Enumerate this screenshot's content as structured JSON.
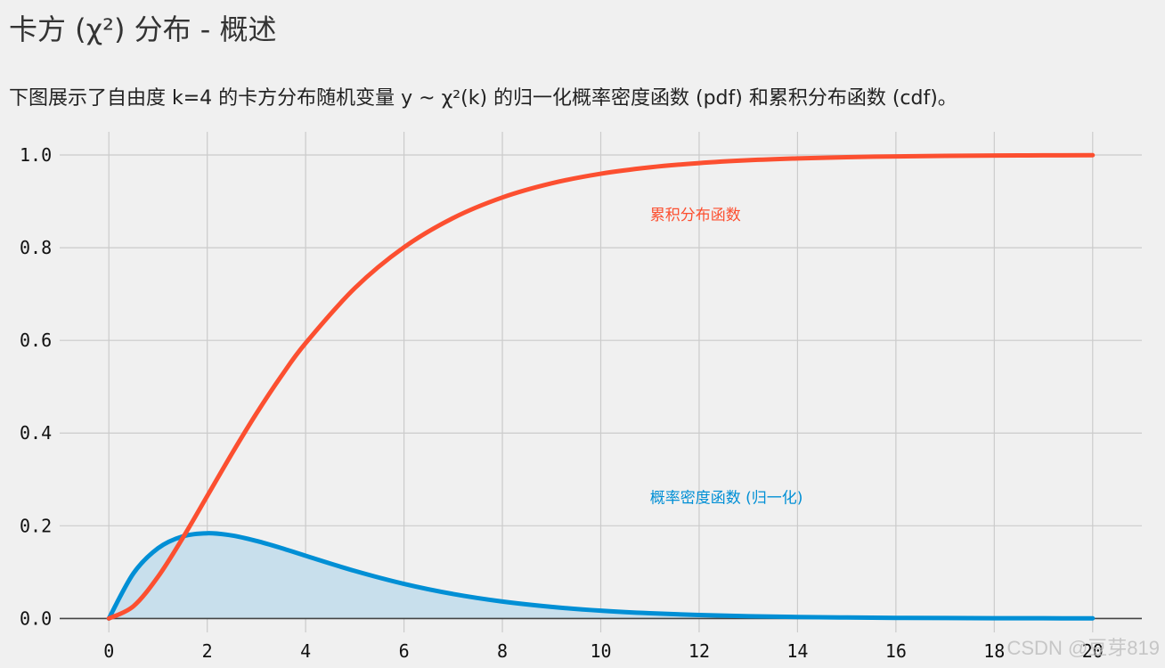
{
  "title": "卡方 (χ²) 分布 - 概述",
  "subtitle": "下图展示了自由度 k=4 的卡方分布随机变量 y ~ χ²(k) 的归一化概率密度函数 (pdf) 和累积分布函数 (cdf)。",
  "watermark": "CSDN @豆芽819",
  "colors": {
    "background": "#f0f0f0",
    "grid": "#cbcbcb",
    "pdf": "#008fd5",
    "cdf": "#fc4f30",
    "pdf_fill": "#c8dfec",
    "axis": "#444444"
  },
  "chart_data": {
    "type": "line",
    "title": "",
    "xlabel": "",
    "ylabel": "",
    "xlim": [
      -1,
      21
    ],
    "ylim": [
      -0.03,
      1.05
    ],
    "xticks": [
      0,
      2,
      4,
      6,
      8,
      10,
      12,
      14,
      16,
      18,
      20
    ],
    "yticks": [
      0.0,
      0.2,
      0.4,
      0.6,
      0.8,
      1.0
    ],
    "ytick_labels": [
      "0.0",
      "0.2",
      "0.4",
      "0.6",
      "0.8",
      "1.0"
    ],
    "xtick_labels": [
      "0",
      "2",
      "4",
      "6",
      "8",
      "10",
      "12",
      "14",
      "16",
      "18",
      "20"
    ],
    "grid": true,
    "x": [
      0,
      0.5,
      1,
      1.5,
      2,
      2.5,
      3,
      3.5,
      4,
      5,
      6,
      7,
      8,
      9,
      10,
      11,
      12,
      13,
      14,
      15,
      16,
      17,
      18,
      19,
      20
    ],
    "series": [
      {
        "name": "概率密度函数 (归一化)",
        "key": "pdf",
        "fill": true,
        "values": [
          0,
          0.0974,
          0.1516,
          0.1771,
          0.1839,
          0.1791,
          0.1673,
          0.1521,
          0.1353,
          0.1026,
          0.0747,
          0.0528,
          0.0366,
          0.025,
          0.0168,
          0.0112,
          0.0074,
          0.0049,
          0.0032,
          0.0021,
          0.0013,
          0.0009,
          0.0006,
          0.0004,
          0.0002
        ]
      },
      {
        "name": "累积分布函数",
        "key": "cdf",
        "fill": false,
        "values": [
          0,
          0.0265,
          0.0902,
          0.1734,
          0.2642,
          0.3554,
          0.4422,
          0.5221,
          0.594,
          0.7127,
          0.8009,
          0.8641,
          0.9084,
          0.9389,
          0.9596,
          0.9734,
          0.9826,
          0.9887,
          0.9927,
          0.9953,
          0.997,
          0.9981,
          0.9988,
          0.9992,
          0.9995
        ]
      }
    ],
    "annotations": [
      {
        "text": "累积分布函数",
        "x": 11,
        "y": 0.86,
        "series": "cdf"
      },
      {
        "text": "概率密度函数 (归一化)",
        "x": 11,
        "y": 0.25,
        "series": "pdf"
      }
    ]
  }
}
